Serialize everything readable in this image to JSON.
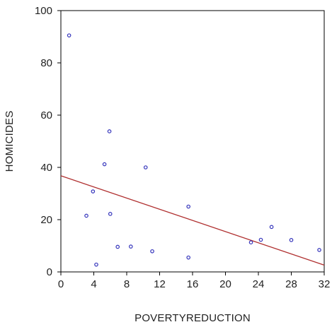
{
  "chart_data": {
    "type": "scatter",
    "title": "",
    "xlabel": "POVERTYREDUCTION",
    "ylabel": "HOMICIDES",
    "xlim": [
      0,
      32
    ],
    "ylim": [
      0,
      100
    ],
    "x_ticks": [
      0,
      4,
      8,
      12,
      16,
      20,
      24,
      28,
      32
    ],
    "y_ticks": [
      0,
      20,
      40,
      60,
      80,
      100
    ],
    "grid": false,
    "legend": "none",
    "points": [
      {
        "x": 1.0,
        "y": 90.5
      },
      {
        "x": 3.1,
        "y": 21.5
      },
      {
        "x": 3.9,
        "y": 30.8
      },
      {
        "x": 4.3,
        "y": 2.8
      },
      {
        "x": 5.3,
        "y": 41.2
      },
      {
        "x": 5.9,
        "y": 53.8
      },
      {
        "x": 6.0,
        "y": 22.2
      },
      {
        "x": 6.9,
        "y": 9.6
      },
      {
        "x": 8.5,
        "y": 9.7
      },
      {
        "x": 10.3,
        "y": 40.0
      },
      {
        "x": 11.1,
        "y": 7.9
      },
      {
        "x": 15.5,
        "y": 25.0
      },
      {
        "x": 15.5,
        "y": 5.5
      },
      {
        "x": 23.1,
        "y": 11.3
      },
      {
        "x": 24.3,
        "y": 12.3
      },
      {
        "x": 25.6,
        "y": 17.2
      },
      {
        "x": 28.0,
        "y": 12.2
      },
      {
        "x": 31.4,
        "y": 8.4
      }
    ],
    "fit_line": {
      "x": [
        0,
        32
      ],
      "y": [
        36.8,
        2.6
      ]
    },
    "colors": {
      "points": "#3333bb",
      "fit_line": "#b03030",
      "axes": "#000000"
    }
  }
}
